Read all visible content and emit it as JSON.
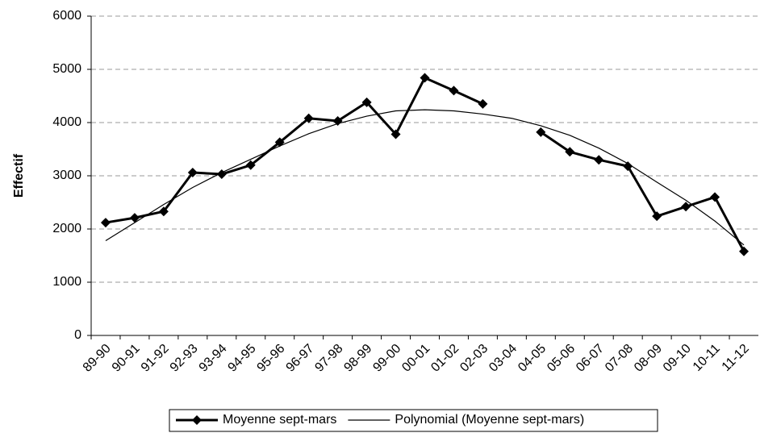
{
  "chart_data": {
    "type": "line",
    "y_label": "Effectif",
    "categories": [
      "89-90",
      "90-91",
      "91-92",
      "92-93",
      "93-94",
      "94-95",
      "95-96",
      "96-97",
      "97-98",
      "98-99",
      "99-00",
      "00-01",
      "01-02",
      "02-03",
      "03-04",
      "04-05",
      "05-06",
      "06-07",
      "07-08",
      "08-09",
      "09-10",
      "10-11",
      "11-12"
    ],
    "series": [
      {
        "name": "Moyenne sept-mars",
        "color": "#000000",
        "marker": true,
        "values": [
          2120,
          2210,
          2330,
          3060,
          3030,
          3200,
          3630,
          4080,
          4030,
          4380,
          3780,
          4840,
          4600,
          4350,
          null,
          3820,
          3450,
          3300,
          3180,
          2240,
          2420,
          2600,
          1580
        ]
      },
      {
        "name": "Polynomial (Moyenne sept-mars)",
        "color": "#000000",
        "marker": false,
        "values": [
          1780,
          2120,
          2460,
          2780,
          3060,
          3310,
          3560,
          3790,
          3980,
          4120,
          4220,
          4240,
          4220,
          4160,
          4080,
          3940,
          3760,
          3520,
          3230,
          2880,
          2540,
          2150,
          1700
        ]
      }
    ],
    "ylim": [
      0,
      6000
    ],
    "yticks": [
      0,
      1000,
      2000,
      3000,
      4000,
      5000,
      6000
    ],
    "grid": true,
    "legend": "bottom"
  }
}
